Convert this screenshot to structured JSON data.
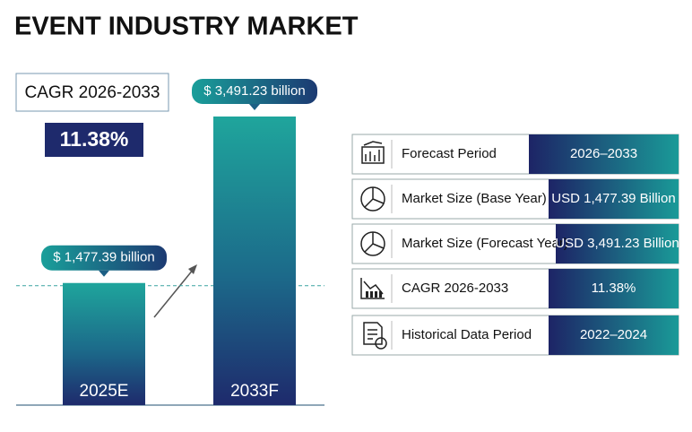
{
  "chart_data": {
    "type": "bar",
    "title": "EVENT INDUSTRY MARKET",
    "categories": [
      "2025E",
      "2033F"
    ],
    "values": [
      1477.39,
      3491.23
    ],
    "value_labels": [
      "$ 1,477.39 billion",
      "$ 3,491.23 billion"
    ]
  },
  "cagr": {
    "label": "CAGR 2026-2033",
    "value": "11.38%"
  },
  "table": {
    "rows": [
      [
        "Forecast Period",
        "2026–2033"
      ],
      [
        "Market Size (Base Year)",
        "USD 1,477.39 Billion"
      ],
      [
        "Market Size (Forecast Year)",
        "USD 3,491.23 Billion"
      ],
      [
        "CAGR 2026-2033",
        "11.38%"
      ],
      [
        "Historical Data Period",
        "2022–2024"
      ]
    ]
  }
}
